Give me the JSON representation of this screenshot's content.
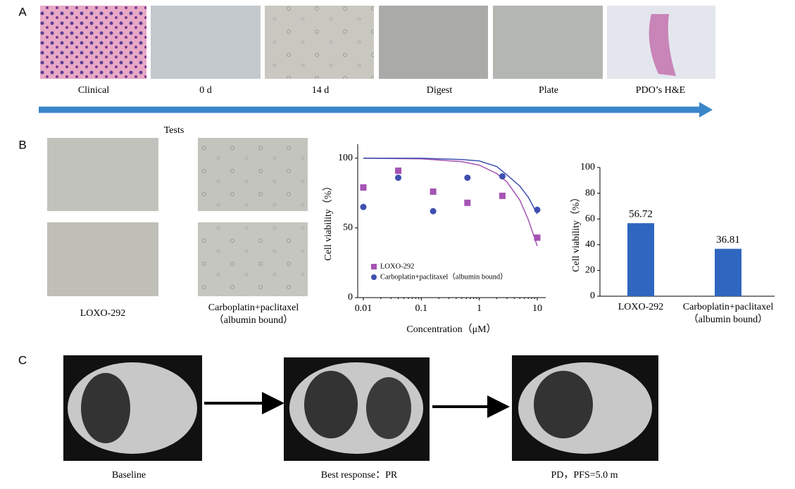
{
  "panel_labels": [
    "A",
    "B",
    "C"
  ],
  "panel_a": {
    "captions": [
      "Clinical",
      "0 d",
      "14 d",
      "Digest",
      "Plate",
      "PDO’s H&E"
    ]
  },
  "panel_b": {
    "title": "Tests",
    "captions": [
      "LOXO-292",
      "Carboplatin+paclitaxel（albumin bound）"
    ]
  },
  "chart_data": [
    {
      "type": "scatter",
      "ylabel": "Cell viability（%）",
      "xlabel": "Concentration（μM）",
      "log_x": true,
      "x": [
        0.01,
        0.04,
        0.16,
        0.625,
        2.5,
        10
      ],
      "xlim": [
        0.008,
        14
      ],
      "xticks": [
        0.01,
        0.1,
        1,
        10
      ],
      "ylim": [
        0,
        110
      ],
      "yticks": [
        0,
        50,
        100
      ],
      "legend": "lower left",
      "series": [
        {
          "name": "LOXO-292",
          "color": "#a553b3",
          "marker": "square",
          "values": [
            79,
            91,
            76,
            68,
            73,
            43
          ],
          "fit": {
            "x": [
              0.01,
              0.1,
              0.5,
              1,
              2,
              3,
              5,
              7,
              10
            ],
            "values": [
              100,
              99.5,
              97.5,
              95,
              89,
              83,
              70,
              56,
              37
            ]
          }
        },
        {
          "name": "Carboplatin+paclitaxel（albumin bound）",
          "color": "#3f4fb0",
          "marker": "circle",
          "values": [
            65,
            86,
            62,
            86,
            87,
            63
          ],
          "fit": {
            "x": [
              0.01,
              0.1,
              0.5,
              1,
              2,
              3,
              5,
              7,
              10
            ],
            "values": [
              100,
              100,
              99,
              98,
              94,
              88,
              80,
              72,
              60
            ]
          }
        }
      ]
    },
    {
      "type": "bar",
      "ylabel": "Cell viability（%）",
      "categories": [
        "LOXO-292",
        "Carboplatin+paclitaxel（albumin bound）"
      ],
      "values": [
        56.72,
        36.81
      ],
      "color": "#2f66c0",
      "ylim": [
        0,
        100
      ],
      "yticks": [
        0,
        20,
        40,
        60,
        80,
        100
      ]
    }
  ],
  "panel_c": {
    "captions": [
      "Baseline",
      "Best response：PR",
      "PD，PFS=5.0 m"
    ]
  }
}
